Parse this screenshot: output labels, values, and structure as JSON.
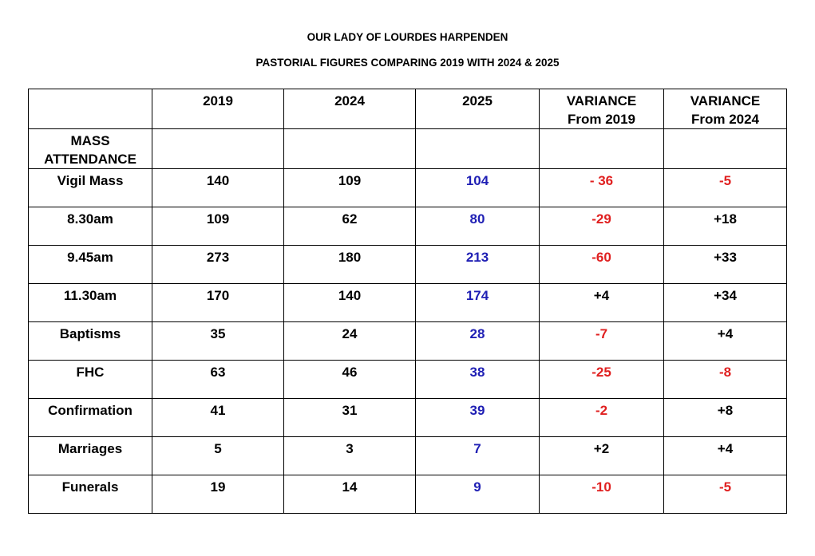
{
  "header": {
    "title": "OUR LADY OF LOURDES HARPENDEN",
    "subtitle": "PASTORIAL FIGURES COMPARING 2019 WITH 2024 & 2025"
  },
  "table": {
    "columns": [
      null,
      2019,
      2024,
      2025,
      "VARIANCE\nFrom 2019",
      "VARIANCE\nFrom 2024"
    ],
    "highlight_column": 3,
    "highlight_color": "#1f1fb4",
    "negative_color": "#e02020",
    "rows": [
      [
        "MASS\nATTENDANCE",
        null,
        null,
        null,
        null,
        null
      ],
      [
        "Vigil Mass",
        140,
        109,
        104,
        "- 36",
        "-5"
      ],
      [
        "8.30am",
        109,
        62,
        80,
        "-29",
        "+18"
      ],
      [
        "9.45am",
        273,
        180,
        213,
        "-60",
        "+33"
      ],
      [
        "11.30am",
        170,
        140,
        174,
        "+4",
        "+34"
      ],
      [
        "Baptisms",
        35,
        24,
        28,
        "-7",
        "+4"
      ],
      [
        "FHC",
        63,
        46,
        38,
        "-25",
        "-8"
      ],
      [
        "Confirmation",
        41,
        31,
        39,
        "-2",
        "+8"
      ],
      [
        "Marriages",
        5,
        3,
        7,
        "+2",
        "+4"
      ],
      [
        "Funerals",
        19,
        14,
        9,
        "-10",
        "-5"
      ]
    ]
  }
}
